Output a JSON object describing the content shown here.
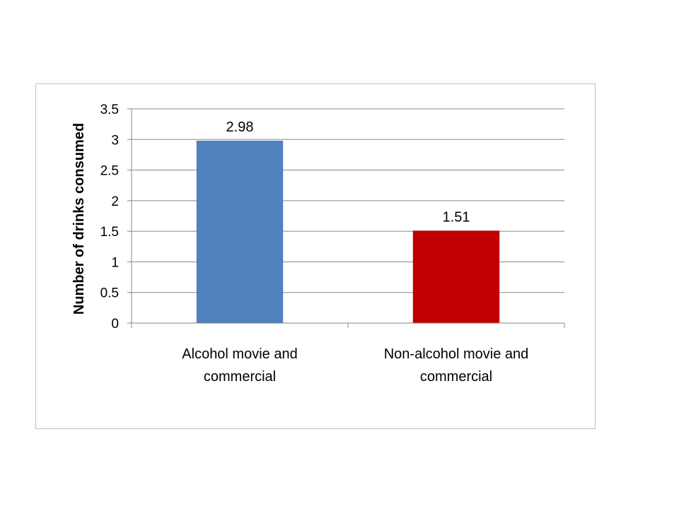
{
  "chart_data": {
    "type": "bar",
    "title": "",
    "xlabel": "",
    "ylabel": "Number of drinks consumed",
    "ylim": [
      0,
      3.5
    ],
    "ytick_step": 0.5,
    "yticks": [
      "0",
      "0.5",
      "1",
      "1.5",
      "2",
      "2.5",
      "3",
      "3.5"
    ],
    "grid": true,
    "legend": "none",
    "categories": [
      [
        "Alcohol movie and",
        "commercial"
      ],
      [
        "Non-alcohol movie and",
        "commercial"
      ]
    ],
    "values": [
      2.98,
      1.51
    ],
    "data_labels": [
      "2.98",
      "1.51"
    ],
    "colors": [
      "#4f81bd",
      "#c00000"
    ],
    "gridline_color": "#878787",
    "axis_color": "#878787"
  }
}
